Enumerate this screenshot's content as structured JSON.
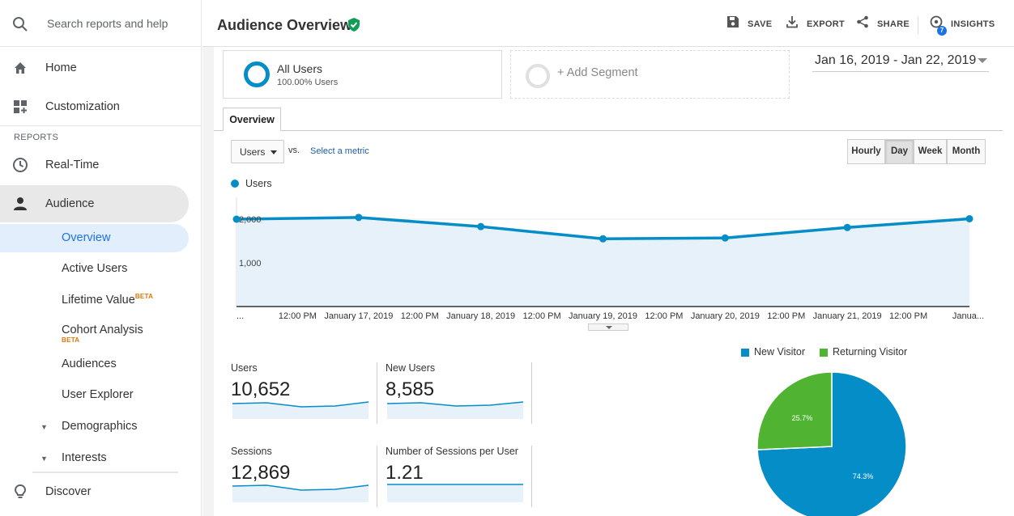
{
  "search": {
    "placeholder": "Search reports and help"
  },
  "sidebar": {
    "home": "Home",
    "customization": "Customization",
    "reports_label": "REPORTS",
    "realtime": "Real-Time",
    "audience": "Audience",
    "sub_items": {
      "overview": "Overview",
      "active_users": "Active Users",
      "lifetime_value": "Lifetime Value",
      "lifetime_beta": "BETA",
      "cohort_analysis": "Cohort Analysis",
      "cohort_beta": "BETA",
      "audiences": "Audiences",
      "user_explorer": "User Explorer",
      "demographics": "Demographics",
      "interests": "Interests"
    },
    "discover": "Discover"
  },
  "header": {
    "title": "Audience Overview",
    "save": "SAVE",
    "export": "EXPORT",
    "share": "SHARE",
    "insights": "INSIGHTS",
    "insights_count": "7"
  },
  "segments": {
    "all_users": "All Users",
    "all_users_pct": "100.00% Users",
    "add_segment": "+ Add Segment"
  },
  "date_range": "Jan 16, 2019 - Jan 22, 2019",
  "tabs": {
    "overview": "Overview"
  },
  "controls": {
    "metric": "Users",
    "vs": "vs.",
    "select_metric": "Select a metric",
    "granularity": [
      "Hourly",
      "Day",
      "Week",
      "Month"
    ],
    "active_granularity": "Day"
  },
  "colors": {
    "accent": "#058dc7",
    "returning": "#50b432",
    "area_fill": "#e6f1fa"
  },
  "chart_data": [
    {
      "type": "area",
      "series": [
        {
          "name": "Users",
          "values": [
            2000,
            2040,
            1830,
            1550,
            1570,
            1810,
            2010
          ]
        }
      ],
      "x": [
        "...",
        "January 17, 2019",
        "January 18, 2019",
        "January 19, 2019",
        "January 20, 2019",
        "January 21, 2019",
        "Janua..."
      ],
      "x_tick_labels": [
        "...",
        "12:00 PM",
        "January 17, 2019",
        "12:00 PM",
        "January 18, 2019",
        "12:00 PM",
        "January 19, 2019",
        "12:00 PM",
        "January 20, 2019",
        "12:00 PM",
        "January 21, 2019",
        "12:00 PM",
        "Janua..."
      ],
      "y_tick_labels": [
        "2,000",
        "1,000"
      ],
      "ylim": [
        0,
        2500
      ],
      "grid": true
    },
    {
      "type": "pie",
      "categories": [
        "New Visitor",
        "Returning Visitor"
      ],
      "values": [
        74.3,
        25.7
      ],
      "labels": [
        "74.3%",
        "25.7%"
      ],
      "legend": "top"
    }
  ],
  "stats": [
    {
      "label": "Users",
      "value": "10,652"
    },
    {
      "label": "New Users",
      "value": "8,585"
    },
    {
      "label": "Sessions",
      "value": "12,869"
    },
    {
      "label": "Number of Sessions per User",
      "value": "1.21"
    }
  ]
}
